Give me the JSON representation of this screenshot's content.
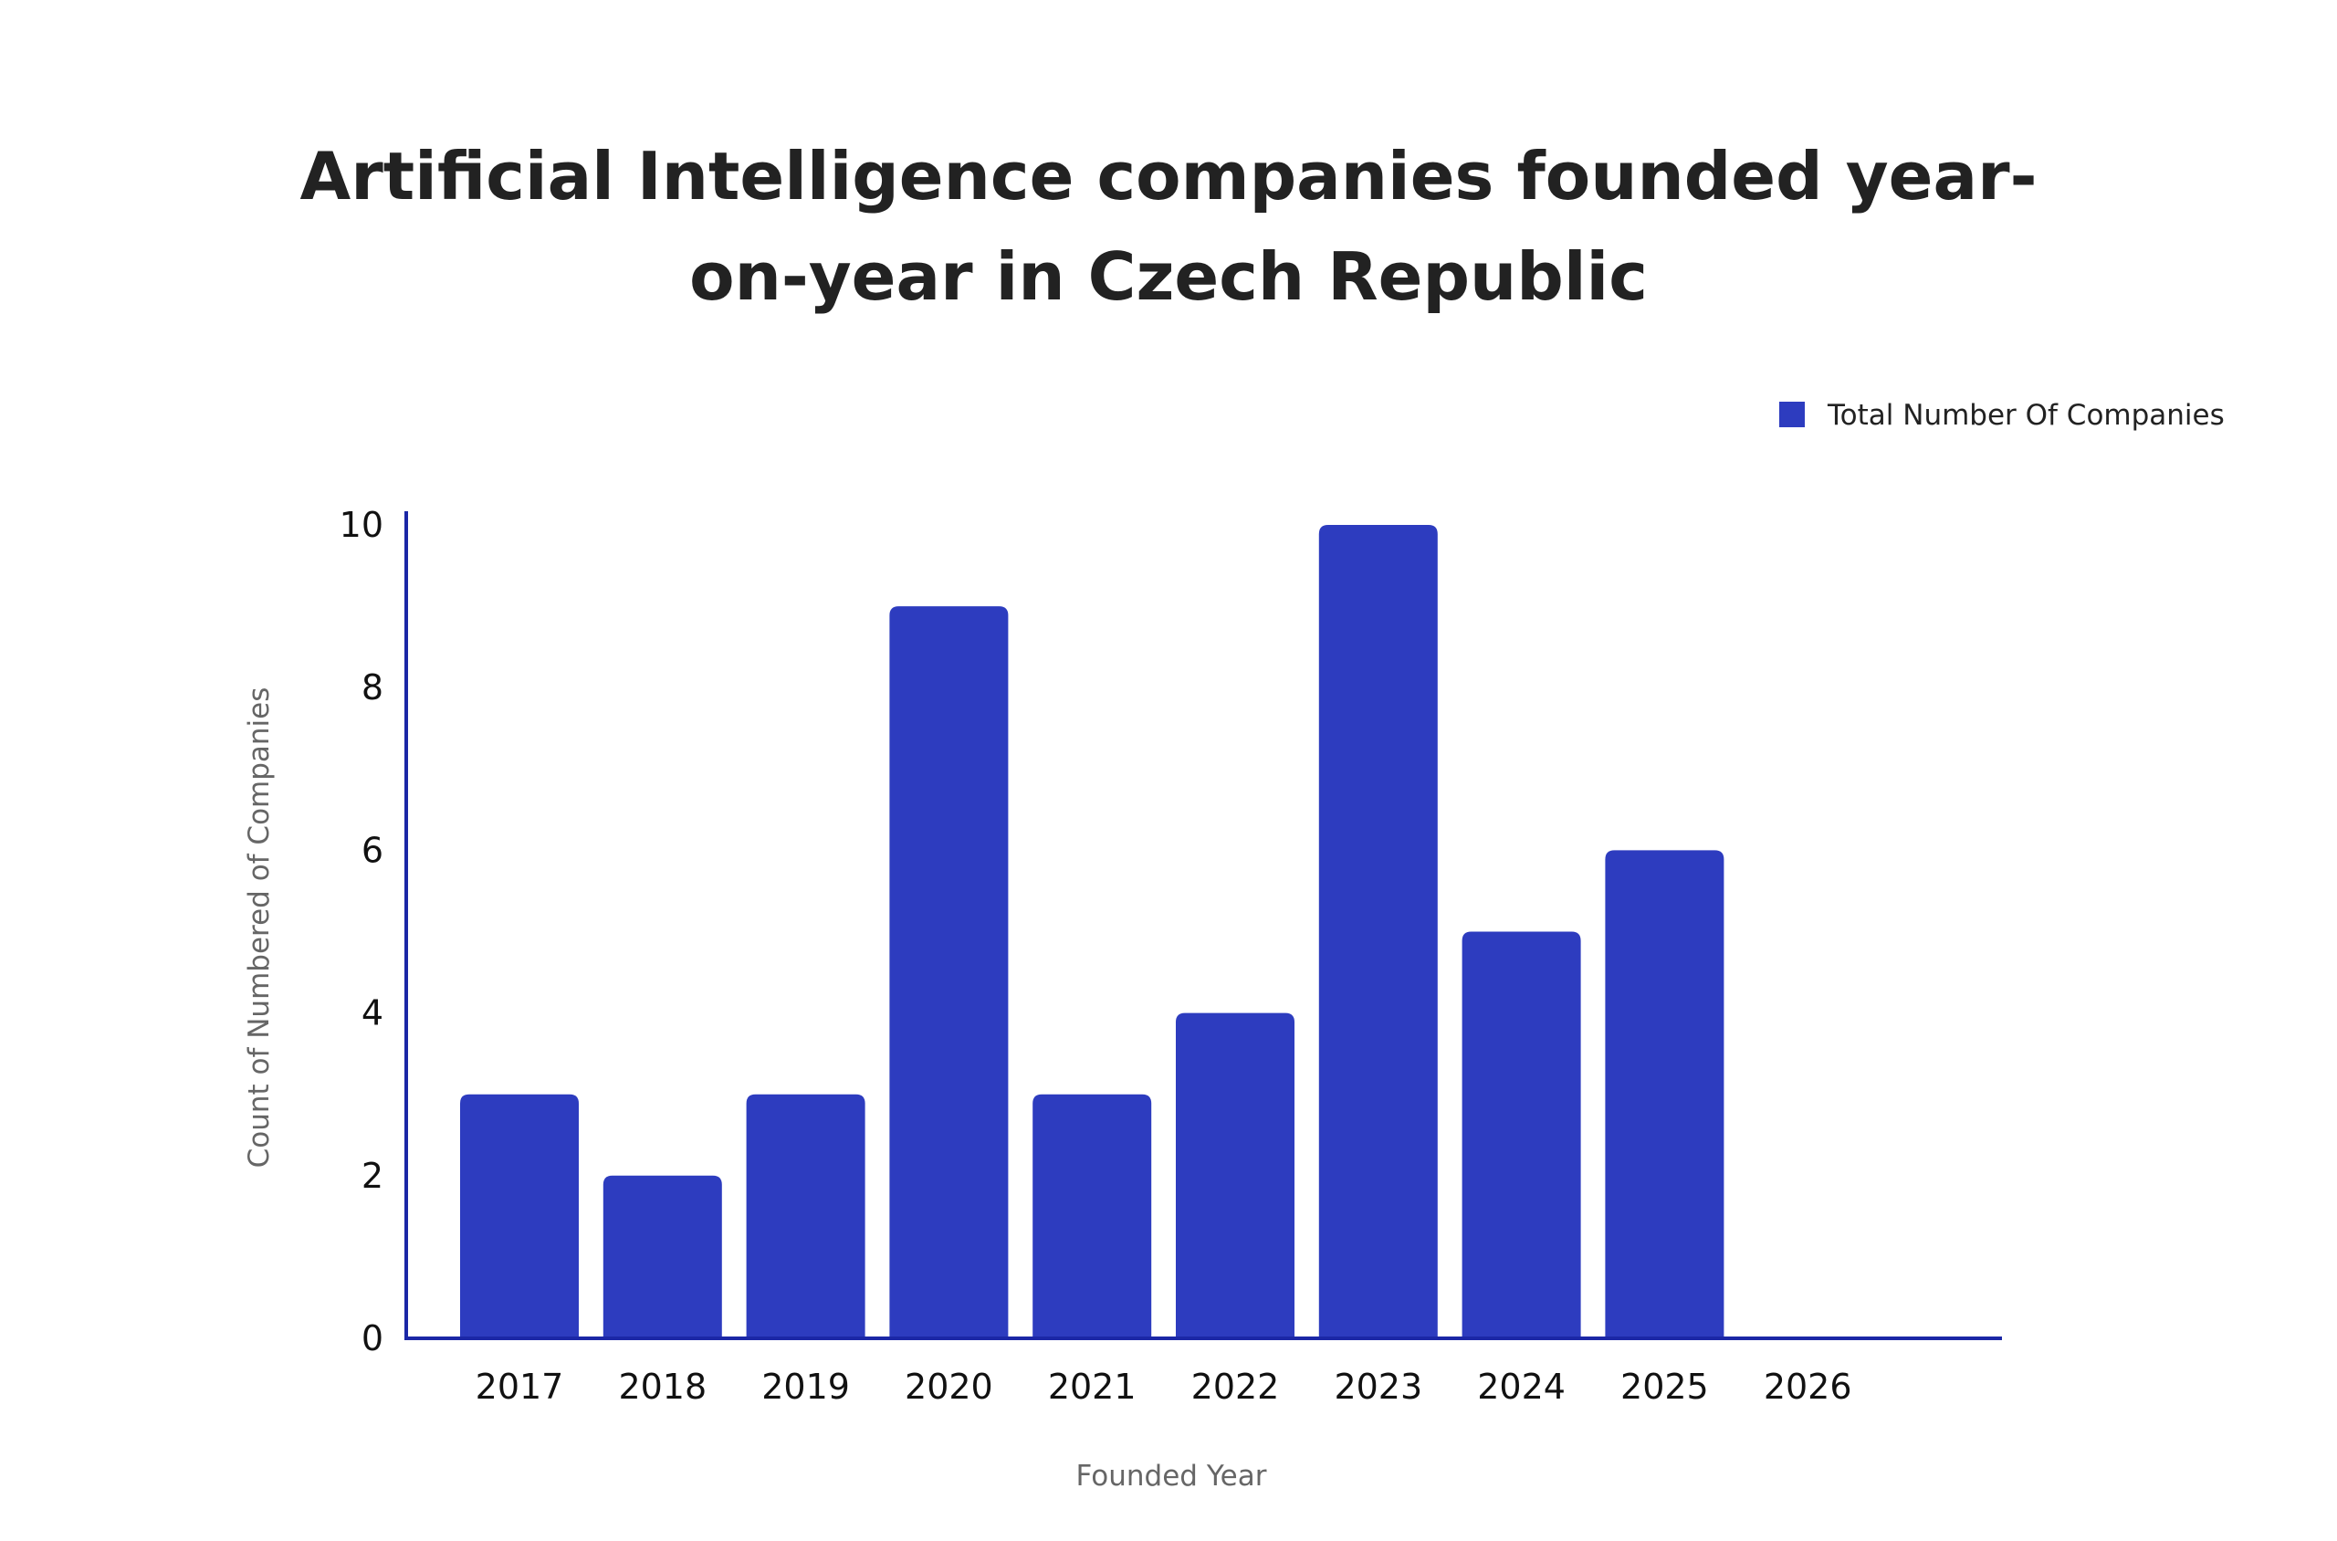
{
  "chart_data": {
    "type": "bar",
    "title_lines": [
      "Artificial Intelligence companies founded year-",
      "on-year in Czech Republic"
    ],
    "xlabel": "Founded Year",
    "ylabel": "Count of Numbered of Companies",
    "categories": [
      "2017",
      "2018",
      "2019",
      "2020",
      "2021",
      "2022",
      "2023",
      "2024",
      "2025",
      "2026"
    ],
    "series": [
      {
        "name": "Total Number Of Companies",
        "values": [
          3,
          2,
          3,
          9,
          3,
          4,
          10,
          5,
          6,
          0
        ]
      }
    ],
    "ylim": [
      0,
      10
    ],
    "yticks": [
      "0",
      "2",
      "4",
      "6",
      "8",
      "10"
    ],
    "grid": false,
    "legend_position": "top-right",
    "colors": {
      "bar": "#2d3cbf",
      "axis": "#1b27a6"
    }
  }
}
